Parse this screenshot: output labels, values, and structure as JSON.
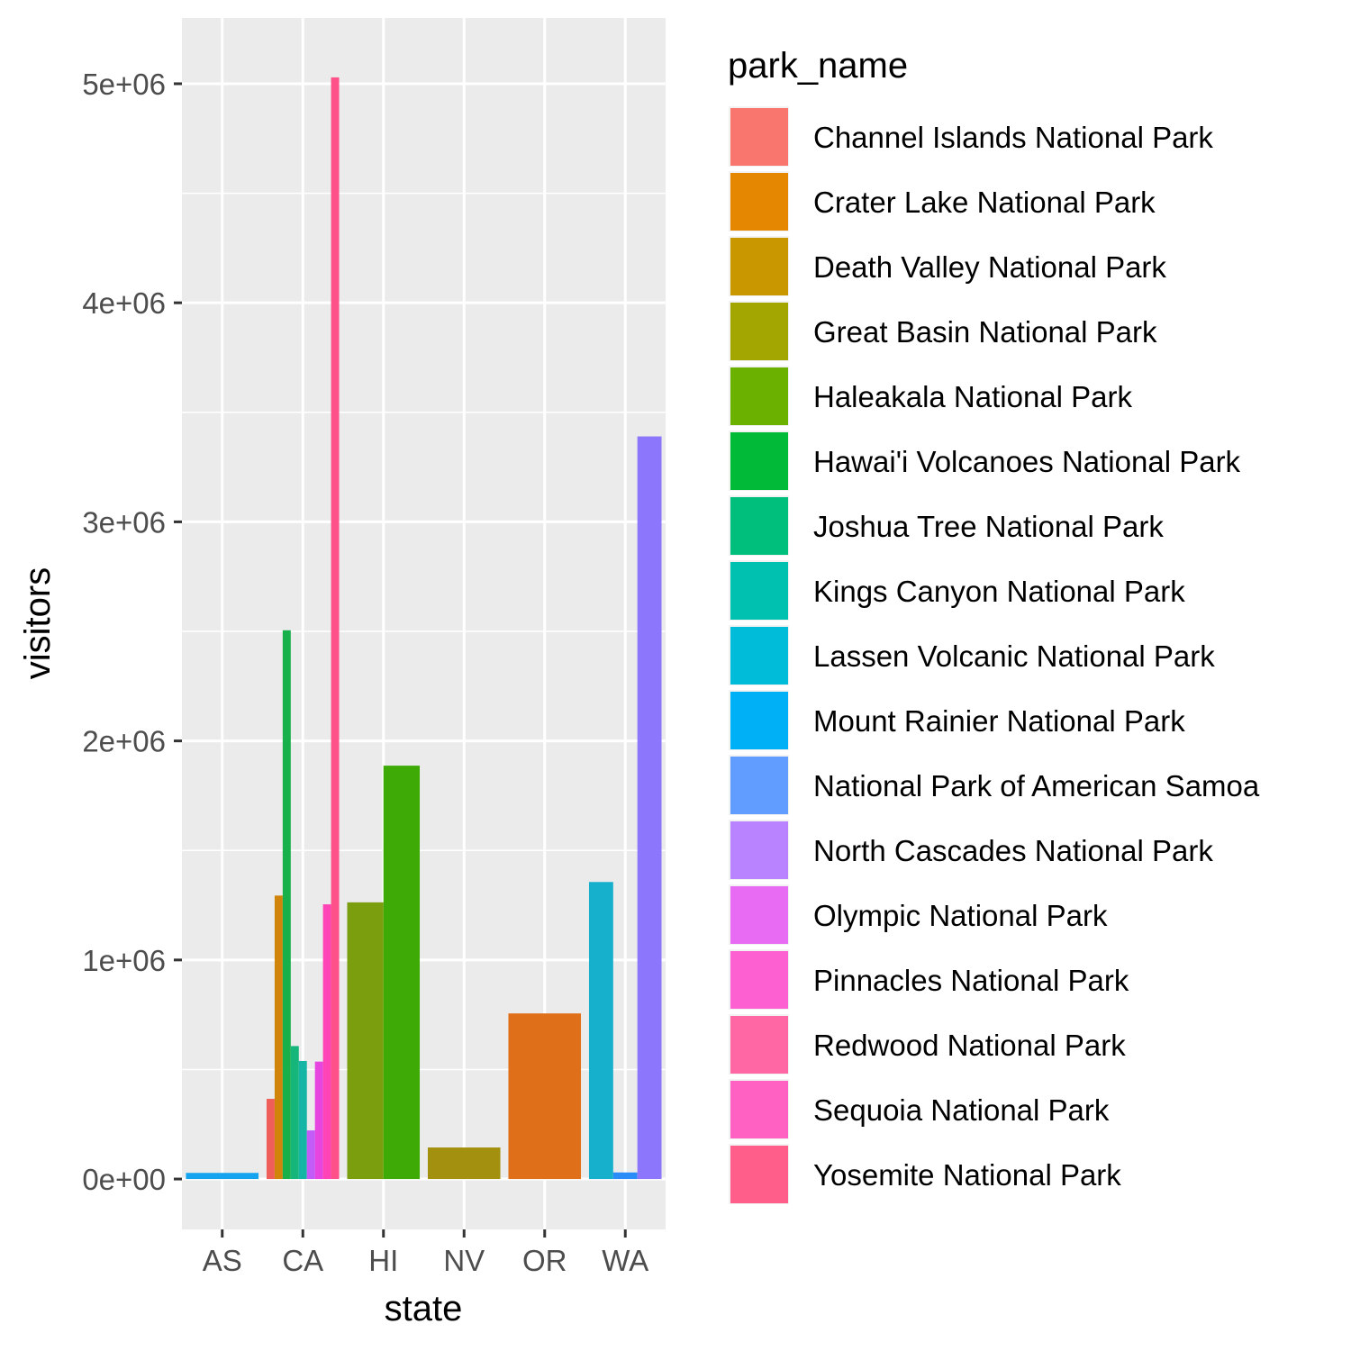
{
  "chart_data": {
    "type": "bar",
    "position": "dodge",
    "xlabel": "state",
    "ylabel": "visitors",
    "ylim": [
      -230000,
      5300000
    ],
    "y_ticks": [
      {
        "value": 0,
        "label": "0e+00"
      },
      {
        "value": 1000000,
        "label": "1e+06"
      },
      {
        "value": 2000000,
        "label": "2e+06"
      },
      {
        "value": 3000000,
        "label": "3e+06"
      },
      {
        "value": 4000000,
        "label": "4e+06"
      },
      {
        "value": 5000000,
        "label": "5e+06"
      }
    ],
    "grid": true,
    "categories": [
      "AS",
      "CA",
      "HI",
      "NV",
      "OR",
      "WA"
    ],
    "legend": {
      "title": "park_name",
      "placement": "right",
      "entries": [
        {
          "name": "Channel Islands National Park",
          "color": "#F8766D"
        },
        {
          "name": "Crater Lake National Park",
          "color": "#E58700"
        },
        {
          "name": "Death Valley National Park",
          "color": "#C99800"
        },
        {
          "name": "Great Basin National Park",
          "color": "#A3A500"
        },
        {
          "name": "Haleakala National Park",
          "color": "#6BB100"
        },
        {
          "name": "Hawai'i Volcanoes National Park",
          "color": "#00BA38"
        },
        {
          "name": "Joshua Tree National Park",
          "color": "#00BF7D"
        },
        {
          "name": "Kings Canyon National Park",
          "color": "#00C0AF"
        },
        {
          "name": "Lassen Volcanic National Park",
          "color": "#00BCD8"
        },
        {
          "name": "Mount Rainier National Park",
          "color": "#00B0F6"
        },
        {
          "name": "National Park of American Samoa",
          "color": "#619CFF"
        },
        {
          "name": "North Cascades National Park",
          "color": "#B983FF"
        },
        {
          "name": "Olympic National Park",
          "color": "#E76BF3"
        },
        {
          "name": "Pinnacles National Park",
          "color": "#FD61D1"
        },
        {
          "name": "Redwood National Park",
          "color": "#FF67A4"
        },
        {
          "name": "Sequoia National Park",
          "color": "#FF61C3"
        },
        {
          "name": "Yosemite National Park",
          "color": "#FF5E8A"
        }
      ]
    },
    "groups": [
      {
        "category": "AS",
        "bars": [
          {
            "park": "National Park of American Samoa",
            "value": 28000,
            "color": "#14A3EF"
          }
        ]
      },
      {
        "category": "CA",
        "bars": [
          {
            "park": "Channel Islands National Park",
            "value": 366000,
            "color": "#F05E5A"
          },
          {
            "park": "Death Valley National Park",
            "value": 1294000,
            "color": "#D0850A"
          },
          {
            "park": "Joshua Tree National Park",
            "value": 2505000,
            "color": "#18B04A"
          },
          {
            "park": "Kings Canyon National Park",
            "value": 607000,
            "color": "#16B67A"
          },
          {
            "park": "Lassen Volcanic National Park",
            "value": 539000,
            "color": "#15B5A6"
          },
          {
            "park": "Pinnacles National Park",
            "value": 222000,
            "color": "#C25CF8"
          },
          {
            "park": "Redwood National Park",
            "value": 536000,
            "color": "#E645DF"
          },
          {
            "park": "Sequoia National Park",
            "value": 1254000,
            "color": "#FF44B5"
          },
          {
            "park": "Yosemite National Park",
            "value": 5029000,
            "color": "#FE5089"
          }
        ]
      },
      {
        "category": "HI",
        "bars": [
          {
            "park": "Haleakala National Park",
            "value": 1263000,
            "color": "#7A9E0E"
          },
          {
            "park": "Hawai'i Volcanoes National Park",
            "value": 1887000,
            "color": "#3DAA06"
          }
        ]
      },
      {
        "category": "NV",
        "bars": [
          {
            "park": "Great Basin National Park",
            "value": 144000,
            "color": "#A2900E"
          }
        ]
      },
      {
        "category": "OR",
        "bars": [
          {
            "park": "Crater Lake National Park",
            "value": 756000,
            "color": "#DF7019"
          }
        ]
      },
      {
        "category": "WA",
        "bars": [
          {
            "park": "Mount Rainier National Park",
            "value": 1356000,
            "color": "#16B0CC"
          },
          {
            "park": "North Cascades National Park",
            "value": 30000,
            "color": "#2A8CF7"
          },
          {
            "park": "Olympic National Park",
            "value": 3390000,
            "color": "#8C77FC"
          }
        ]
      }
    ]
  }
}
